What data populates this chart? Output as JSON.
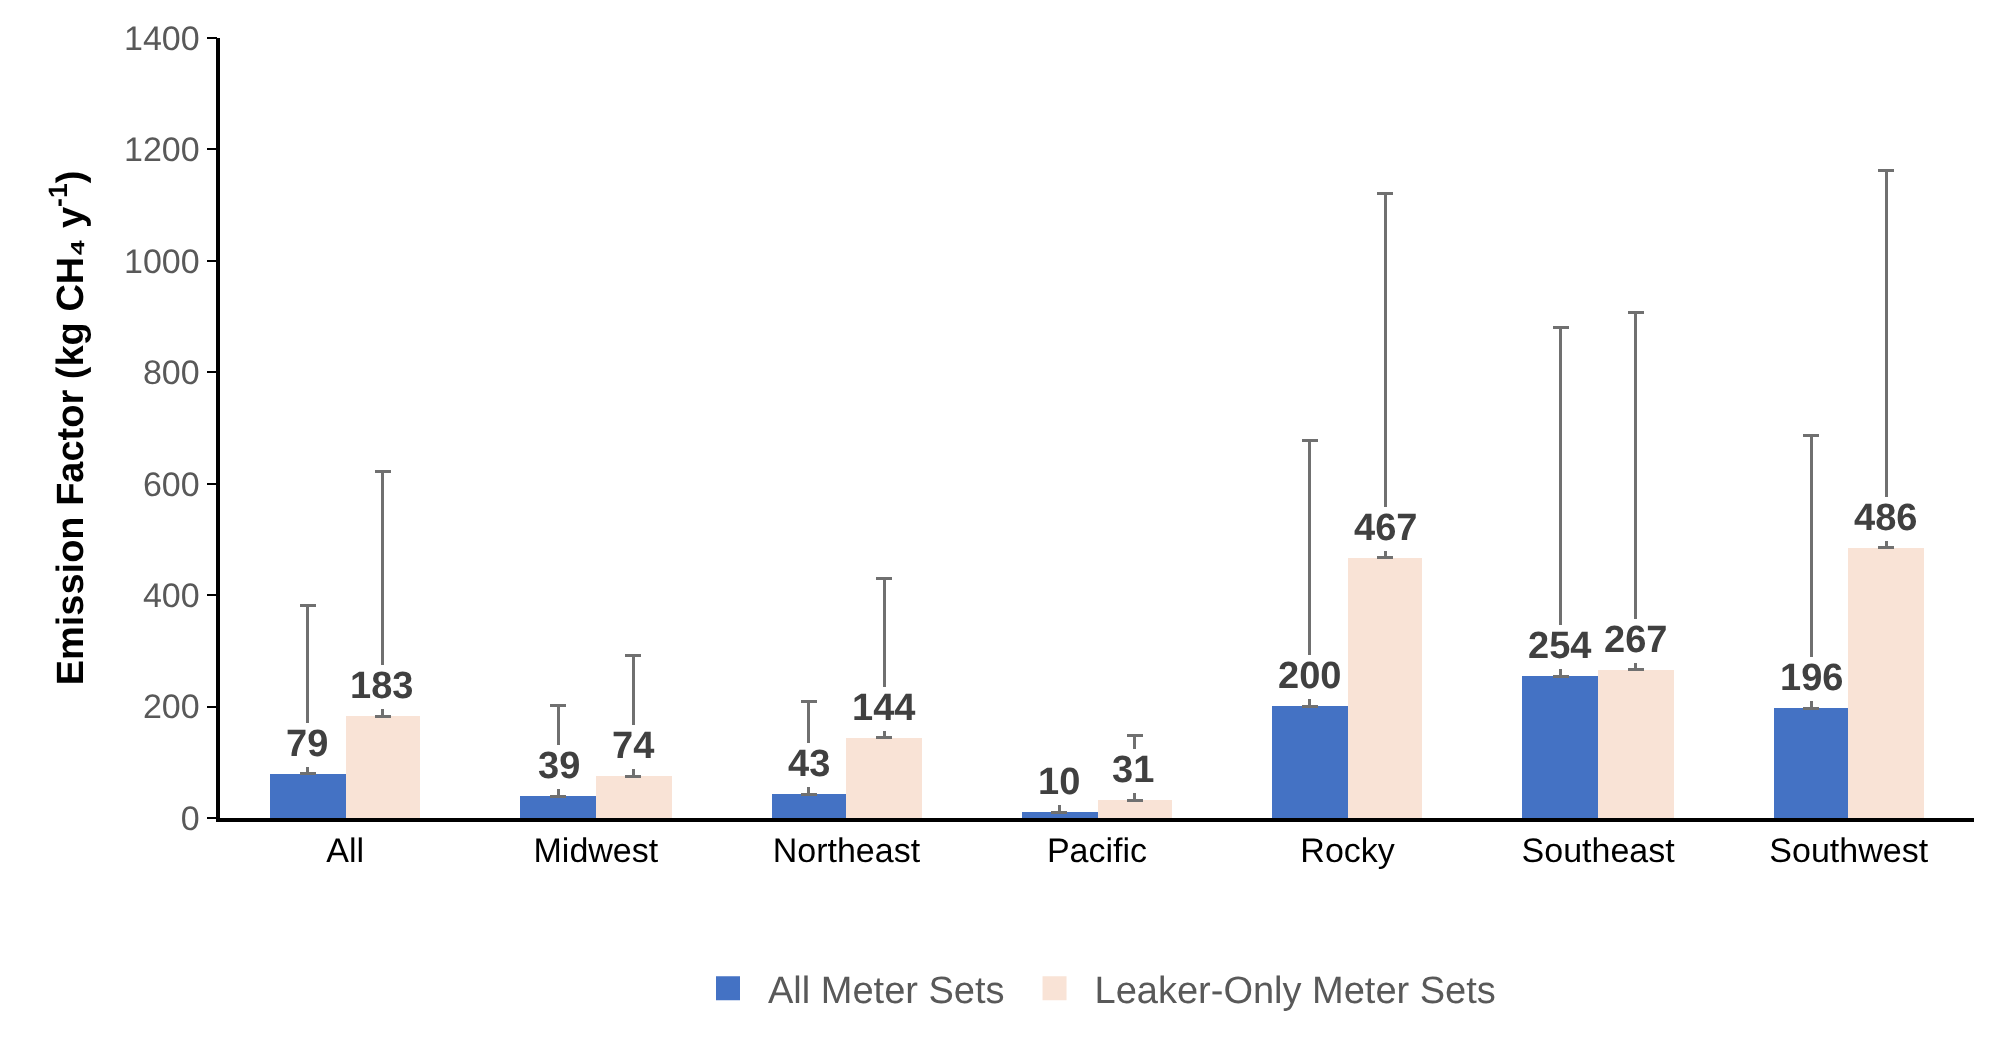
{
  "chart_data": {
    "type": "bar",
    "ylabel": "Emission Factor (kg CH₄ y$^{-1}$)",
    "categories": [
      "All",
      "Midwest",
      "Northeast",
      "Pacific",
      "Rocky",
      "Southeast",
      "Southwest"
    ],
    "series": [
      {
        "name": "All Meter Sets",
        "color": "#4472c4",
        "values": [
          79,
          39,
          43,
          10,
          200,
          254,
          196
        ],
        "errors": [
          [
            79,
            381
          ],
          [
            39,
            202
          ],
          [
            43,
            209
          ],
          [
            10,
            77
          ],
          [
            200,
            677
          ],
          [
            254,
            880
          ],
          [
            196,
            687
          ]
        ]
      },
      {
        "name": "Leaker-Only Meter Sets",
        "color": "#f9e3d6",
        "values": [
          183,
          74,
          144,
          31,
          467,
          267,
          486
        ],
        "errors": [
          [
            183,
            622
          ],
          [
            74,
            292
          ],
          [
            144,
            430
          ],
          [
            31,
            148
          ],
          [
            467,
            1121
          ],
          [
            267,
            908
          ],
          [
            486,
            1162
          ]
        ]
      }
    ],
    "ylim": [
      0,
      1400
    ],
    "yticks": [
      0,
      200,
      400,
      600,
      800,
      1000,
      1200,
      1400
    ],
    "data_labels": true,
    "legend": "bottom"
  }
}
